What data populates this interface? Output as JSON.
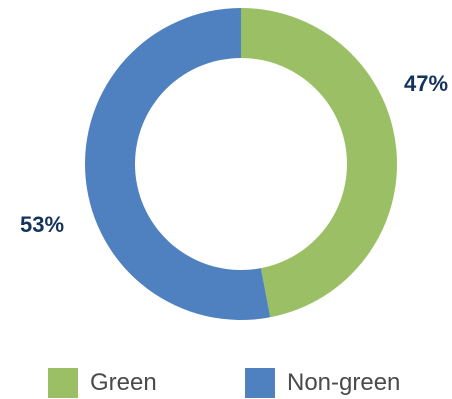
{
  "chart_data": {
    "type": "pie",
    "donut": true,
    "categories": [
      "Green",
      "Non-green"
    ],
    "values": [
      47,
      53
    ],
    "value_labels": [
      "47%",
      "53%"
    ],
    "colors": [
      "#9bbf65",
      "#4f81c0"
    ],
    "label_color": "#14335c",
    "legend": {
      "placement": "bottom",
      "items": [
        {
          "label": "Green",
          "color": "#9bbf65"
        },
        {
          "label": "Non-green",
          "color": "#4f81c0"
        }
      ]
    }
  }
}
